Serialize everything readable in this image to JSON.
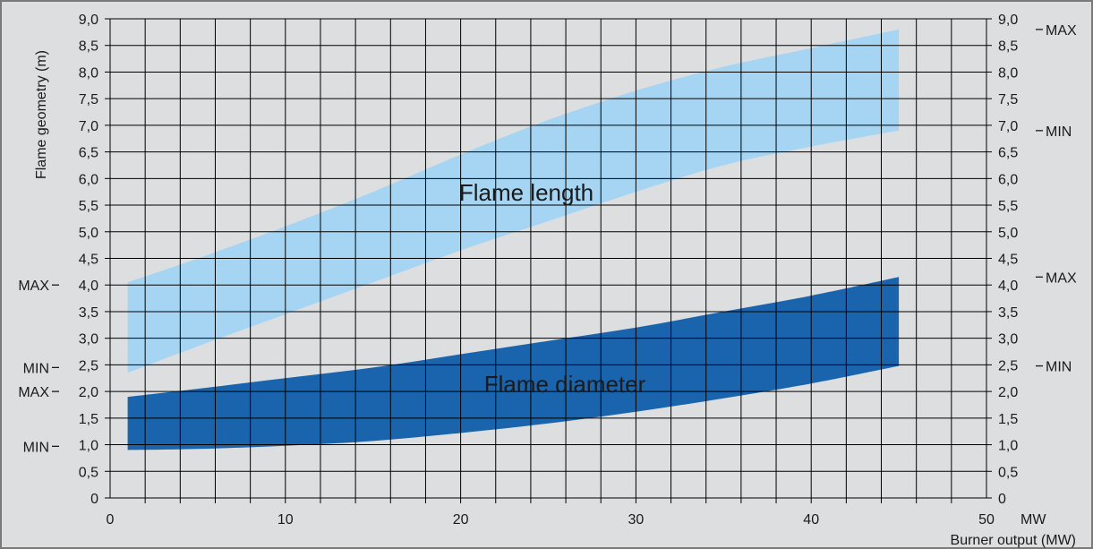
{
  "chart_data": {
    "type": "area",
    "xlabel": "Burner output (MW)",
    "x_unit": "MW",
    "ylabel": "Flame geometry (m)",
    "xlim": [
      0,
      50
    ],
    "ylim": [
      0,
      9
    ],
    "x_ticks": [
      "0",
      "10",
      "20",
      "30",
      "40",
      "50"
    ],
    "y_ticks": [
      "0",
      "0,5",
      "1,0",
      "1,5",
      "2,0",
      "2,5",
      "3,0",
      "3,5",
      "4,0",
      "4,5",
      "5,0",
      "5,5",
      "6,0",
      "6,5",
      "7,0",
      "7,5",
      "8,0",
      "8,5",
      "9,0"
    ],
    "grid": true,
    "colors": {
      "background": "#dddedf",
      "frame": "#7a7a7a",
      "grid": "#000000",
      "flame_length": "#a6d5f3",
      "flame_diameter": "#1964ad"
    },
    "series": [
      {
        "name": "Flame length",
        "color": "#a6d5f3",
        "x": [
          1,
          5,
          10,
          15,
          20,
          25,
          30,
          35,
          40,
          45
        ],
        "upper": [
          4.05,
          4.5,
          5.1,
          5.75,
          6.45,
          7.1,
          7.65,
          8.1,
          8.45,
          8.8
        ],
        "lower": [
          2.35,
          2.85,
          3.45,
          4.05,
          4.65,
          5.2,
          5.75,
          6.25,
          6.6,
          6.9
        ]
      },
      {
        "name": "Flame diameter",
        "color": "#1964ad",
        "x": [
          1,
          5,
          10,
          15,
          20,
          25,
          30,
          35,
          40,
          45
        ],
        "upper": [
          1.9,
          2.05,
          2.25,
          2.45,
          2.7,
          2.95,
          3.2,
          3.5,
          3.8,
          4.15
        ],
        "lower": [
          0.9,
          0.92,
          0.98,
          1.07,
          1.22,
          1.4,
          1.62,
          1.87,
          2.15,
          2.48
        ]
      }
    ],
    "left_markers": [
      {
        "label": "MAX",
        "y": 4.0
      },
      {
        "label": "MIN",
        "y": 2.45
      },
      {
        "label": "MAX",
        "y": 2.0
      },
      {
        "label": "MIN",
        "y": 0.97
      }
    ],
    "right_markers": [
      {
        "label": "MAX",
        "y": 8.8
      },
      {
        "label": "MIN",
        "y": 6.9
      },
      {
        "label": "MAX",
        "y": 4.15
      },
      {
        "label": "MIN",
        "y": 2.48
      }
    ]
  }
}
